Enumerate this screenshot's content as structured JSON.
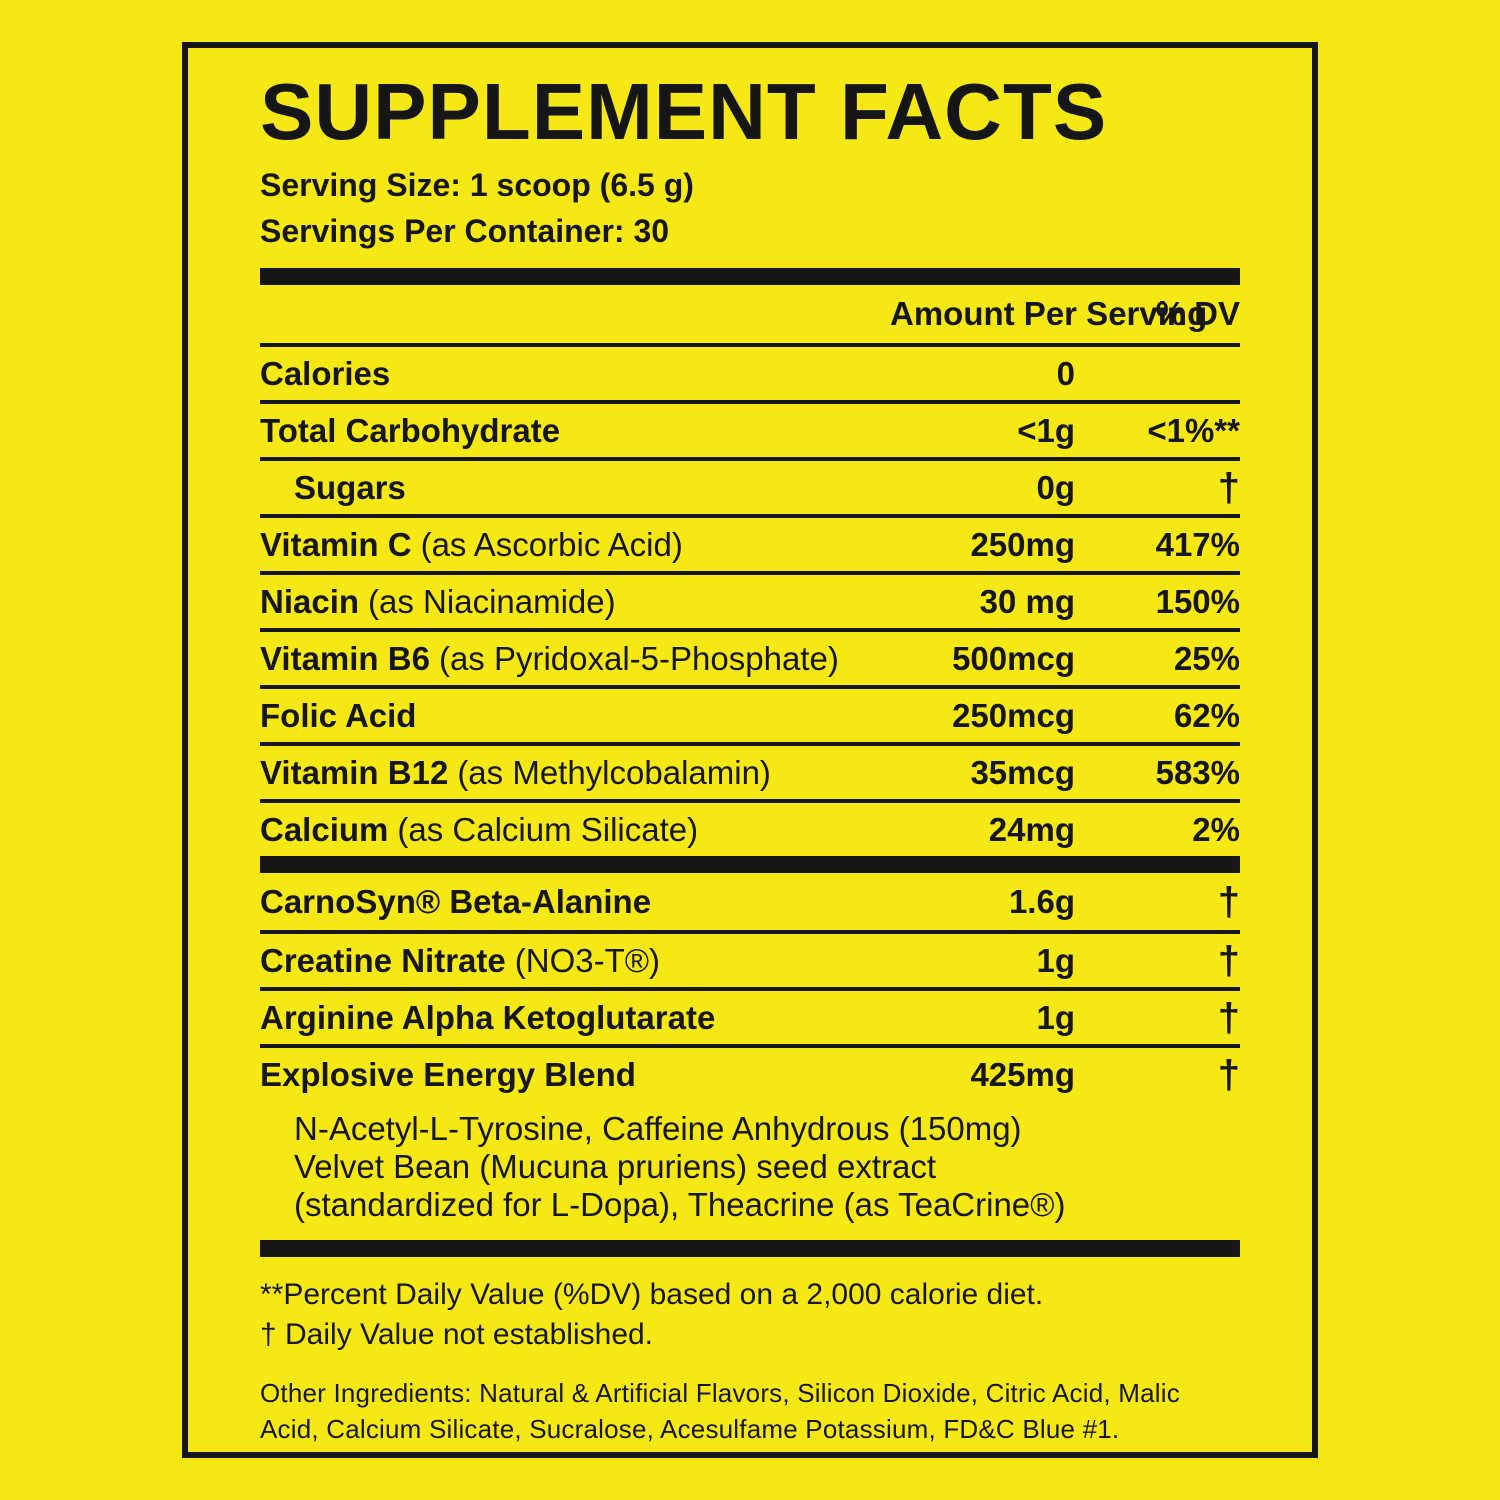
{
  "colors": {
    "background": "#f6e814",
    "ink": "#161616"
  },
  "panel": {
    "title": "SUPPLEMENT FACTS",
    "serving_size": "Serving Size: 1 scoop (6.5 g)",
    "servings_per_container": "Servings Per Container: 30",
    "header": {
      "amount": "Amount Per Serving",
      "dv": "% DV"
    },
    "rows": [
      {
        "label": "Calories",
        "detail": "",
        "amount": "0",
        "dv": ""
      },
      {
        "label": "Total Carbohydrate",
        "detail": "",
        "amount": "<1g",
        "dv": "<1%**"
      },
      {
        "label": "Sugars",
        "detail": "",
        "amount": "0g",
        "dv": "†"
      },
      {
        "label": "Vitamin C",
        "detail": "(as Ascorbic Acid)",
        "amount": "250mg",
        "dv": "417%"
      },
      {
        "label": "Niacin",
        "detail": "(as Niacinamide)",
        "amount": "30 mg",
        "dv": "150%"
      },
      {
        "label": "Vitamin B6",
        "detail": "(as Pyridoxal-5-Phosphate)",
        "amount": "500mcg",
        "dv": "25%"
      },
      {
        "label": "Folic Acid",
        "detail": "",
        "amount": "250mcg",
        "dv": "62%"
      },
      {
        "label": "Vitamin B12",
        "detail": "(as Methylcobalamin)",
        "amount": "35mcg",
        "dv": "583%"
      },
      {
        "label": "Calcium",
        "detail": "(as Calcium Silicate)",
        "amount": "24mg",
        "dv": "2%"
      },
      {
        "label": "CarnoSyn® Beta-Alanine",
        "detail": "",
        "amount": "1.6g",
        "dv": "†"
      },
      {
        "label": "Creatine Nitrate",
        "detail": "(NO3-T®)",
        "amount": "1g",
        "dv": "†"
      },
      {
        "label": "Arginine Alpha Ketoglutarate",
        "detail": "",
        "amount": "1g",
        "dv": "†"
      },
      {
        "label": "Explosive Energy Blend",
        "detail": "",
        "amount": "425mg",
        "dv": "†"
      }
    ],
    "blend_description": [
      "N-Acetyl-L-Tyrosine, Caffeine Anhydrous (150mg)",
      "Velvet Bean (Mucuna pruriens) seed extract",
      "(standardized for L-Dopa), Theacrine (as TeaCrine®)"
    ],
    "footnotes": [
      "**Percent Daily Value (%DV) based on a 2,000 calorie diet.",
      "† Daily Value not established."
    ],
    "other_ingredients": "Other Ingredients: Natural & Artificial Flavors, Silicon Dioxide, Citric Acid, Malic Acid, Calcium Silicate, Sucralose, Acesulfame Potassium, FD&C Blue #1."
  }
}
